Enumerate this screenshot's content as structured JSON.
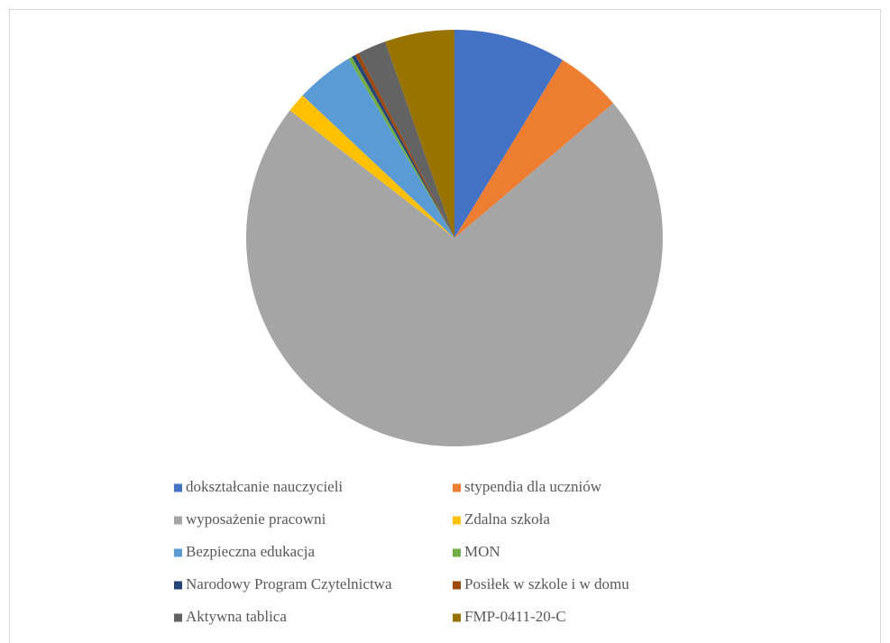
{
  "chart_data": {
    "type": "pie",
    "categories": [
      "dokształcanie nauczycieli",
      "stypendia dla uczniów",
      "wyposażenie pracowni",
      "Zdalna szkoła",
      "Bezpieczna edukacja",
      "MON",
      "Narodowy Program Czytelnictwa",
      "Posiłek w szkole i w domu",
      "Aktywna tablica",
      "FMP-0411-20-C"
    ],
    "values": [
      8.7,
      5.1,
      71.7,
      1.5,
      4.5,
      0.3,
      0.3,
      0.3,
      2.2,
      5.4
    ],
    "colors": [
      "#4472c4",
      "#ed7d31",
      "#a5a5a5",
      "#ffc000",
      "#5b9bd5",
      "#70ad47",
      "#264478",
      "#9e480e",
      "#636363",
      "#997300"
    ],
    "legend": "bottom"
  }
}
